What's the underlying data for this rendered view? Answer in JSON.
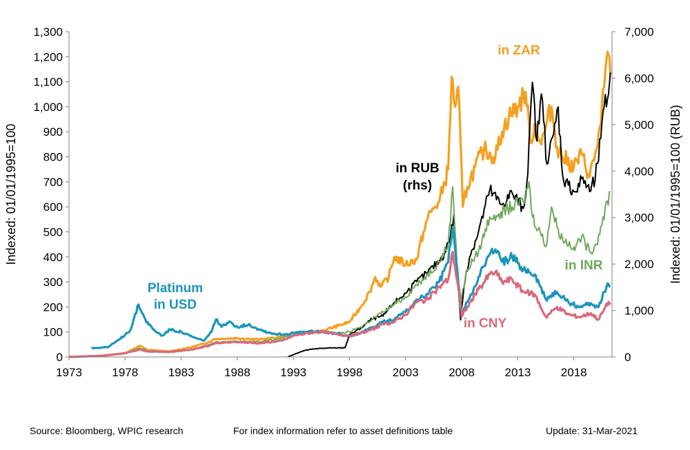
{
  "chart_data": {
    "type": "line",
    "x_ticks": [
      "1973",
      "1978",
      "1983",
      "1988",
      "1993",
      "1998",
      "2003",
      "2008",
      "2013",
      "2018"
    ],
    "y_left": {
      "label": "Indexed:  01/01/1995=100",
      "range": [
        0,
        1300
      ],
      "ticks": [
        "0",
        "100",
        "200",
        "300",
        "400",
        "500",
        "600",
        "700",
        "800",
        "900",
        "1,000",
        "1,100",
        "1,200",
        "1,300"
      ]
    },
    "y_right": {
      "label": "Indexed:  01/01/1995=100  (RUB)",
      "range": [
        0,
        7000
      ],
      "ticks": [
        "0",
        "1,000",
        "2,000",
        "3,000",
        "4,000",
        "5,000",
        "6,000",
        "7,000"
      ]
    },
    "series": [
      {
        "name": "in ZAR",
        "color": "#f5a020",
        "axis": "left",
        "points": [
          [
            1973,
            0
          ],
          [
            1976,
            5
          ],
          [
            1978,
            15
          ],
          [
            1979.3,
            45
          ],
          [
            1980,
            28
          ],
          [
            1982,
            22
          ],
          [
            1984,
            40
          ],
          [
            1985.5,
            60
          ],
          [
            1986,
            72
          ],
          [
            1988,
            75
          ],
          [
            1990,
            70
          ],
          [
            1992,
            80
          ],
          [
            1993,
            95
          ],
          [
            1995,
            100
          ],
          [
            1996,
            110
          ],
          [
            1997,
            125
          ],
          [
            1998,
            140
          ],
          [
            1999,
            200
          ],
          [
            1999.8,
            260
          ],
          [
            2000.3,
            320
          ],
          [
            2000.8,
            280
          ],
          [
            2001.5,
            320
          ],
          [
            2002,
            400
          ],
          [
            2003,
            370
          ],
          [
            2004,
            390
          ],
          [
            2004.6,
            500
          ],
          [
            2005,
            560
          ],
          [
            2005.6,
            600
          ],
          [
            2006,
            620
          ],
          [
            2006.8,
            750
          ],
          [
            2007.1,
            1120
          ],
          [
            2007.4,
            1000
          ],
          [
            2007.7,
            1080
          ],
          [
            2008.1,
            600
          ],
          [
            2008.5,
            680
          ],
          [
            2009.2,
            760
          ],
          [
            2010,
            830
          ],
          [
            2011,
            800
          ],
          [
            2011.6,
            900
          ],
          [
            2012.2,
            960
          ],
          [
            2013,
            1000
          ],
          [
            2013.7,
            1060
          ],
          [
            2014.1,
            870
          ],
          [
            2014.6,
            930
          ],
          [
            2015.1,
            850
          ],
          [
            2015.5,
            920
          ],
          [
            2016,
            1000
          ],
          [
            2016.5,
            840
          ],
          [
            2017,
            800
          ],
          [
            2018,
            760
          ],
          [
            2018.7,
            810
          ],
          [
            2019.4,
            720
          ],
          [
            2020,
            830
          ],
          [
            2020.4,
            930
          ],
          [
            2020.7,
            1080
          ],
          [
            2021,
            1220
          ],
          [
            2021.25,
            1130
          ]
        ]
      },
      {
        "name": "in RUB (rhs)",
        "color": "#000000",
        "axis": "right",
        "points": [
          [
            1992.5,
            0
          ],
          [
            1993,
            50
          ],
          [
            1994,
            140
          ],
          [
            1995,
            180
          ],
          [
            1996,
            190
          ],
          [
            1997.6,
            200
          ],
          [
            1998,
            480
          ],
          [
            1999,
            620
          ],
          [
            2000,
            820
          ],
          [
            2001,
            880
          ],
          [
            2002,
            1180
          ],
          [
            2003,
            1370
          ],
          [
            2004,
            1620
          ],
          [
            2005,
            1830
          ],
          [
            2006,
            2070
          ],
          [
            2006.5,
            2250
          ],
          [
            2007,
            2610
          ],
          [
            2007.3,
            3050
          ],
          [
            2007.9,
            800
          ],
          [
            2008.2,
            1500
          ],
          [
            2008.7,
            2150
          ],
          [
            2009.5,
            2700
          ],
          [
            2010.5,
            3600
          ],
          [
            2011.5,
            3280
          ],
          [
            2012.5,
            3530
          ],
          [
            2013.5,
            3200
          ],
          [
            2013.9,
            3950
          ],
          [
            2014.3,
            5910
          ],
          [
            2014.7,
            4650
          ],
          [
            2015.1,
            5660
          ],
          [
            2015.6,
            4150
          ],
          [
            2016.2,
            4800
          ],
          [
            2016.6,
            5380
          ],
          [
            2017,
            3900
          ],
          [
            2017.5,
            3700
          ],
          [
            2018.2,
            3560
          ],
          [
            2018.8,
            3870
          ],
          [
            2019.4,
            3560
          ],
          [
            2019.9,
            3820
          ],
          [
            2020.4,
            4700
          ],
          [
            2020.7,
            5390
          ],
          [
            2021,
            5560
          ],
          [
            2021.25,
            6120
          ]
        ]
      },
      {
        "name": "in INR",
        "color": "#6ea85b",
        "axis": "left",
        "points": [
          [
            1973,
            0
          ],
          [
            1976,
            5
          ],
          [
            1978,
            15
          ],
          [
            1979.3,
            35
          ],
          [
            1980,
            25
          ],
          [
            1982,
            20
          ],
          [
            1984,
            30
          ],
          [
            1985.5,
            50
          ],
          [
            1986,
            58
          ],
          [
            1988,
            62
          ],
          [
            1990,
            60
          ],
          [
            1992,
            75
          ],
          [
            1993,
            90
          ],
          [
            1995,
            100
          ],
          [
            1996,
            100
          ],
          [
            1997,
            95
          ],
          [
            1998,
            100
          ],
          [
            1999,
            120
          ],
          [
            2000,
            150
          ],
          [
            2001,
            180
          ],
          [
            2002,
            210
          ],
          [
            2003,
            240
          ],
          [
            2004,
            290
          ],
          [
            2005,
            330
          ],
          [
            2006,
            380
          ],
          [
            2006.8,
            450
          ],
          [
            2007.2,
            680
          ],
          [
            2007.8,
            200
          ],
          [
            2008.5,
            350
          ],
          [
            2009.5,
            420
          ],
          [
            2010.5,
            560
          ],
          [
            2011.5,
            580
          ],
          [
            2012.5,
            600
          ],
          [
            2013.5,
            620
          ],
          [
            2014,
            700
          ],
          [
            2014.3,
            560
          ],
          [
            2015,
            500
          ],
          [
            2015.5,
            440
          ],
          [
            2016,
            600
          ],
          [
            2016.5,
            520
          ],
          [
            2017,
            470
          ],
          [
            2018,
            440
          ],
          [
            2018.7,
            480
          ],
          [
            2019.4,
            420
          ],
          [
            2020,
            450
          ],
          [
            2020.6,
            560
          ],
          [
            2021.25,
            660
          ]
        ]
      },
      {
        "name": "Platinum in USD",
        "color": "#1a95bd",
        "axis": "left",
        "points": [
          [
            1975,
            35
          ],
          [
            1976.5,
            40
          ],
          [
            1977.5,
            70
          ],
          [
            1978.5,
            110
          ],
          [
            1979.2,
            210
          ],
          [
            1979.8,
            150
          ],
          [
            1980.5,
            110
          ],
          [
            1981.3,
            85
          ],
          [
            1982,
            110
          ],
          [
            1983,
            100
          ],
          [
            1984,
            80
          ],
          [
            1985,
            65
          ],
          [
            1985.7,
            100
          ],
          [
            1986.1,
            150
          ],
          [
            1986.6,
            120
          ],
          [
            1987.4,
            140
          ],
          [
            1988,
            120
          ],
          [
            1989,
            130
          ],
          [
            1990,
            110
          ],
          [
            1991,
            95
          ],
          [
            1992,
            90
          ],
          [
            1993,
            95
          ],
          [
            1994,
            100
          ],
          [
            1995,
            102
          ],
          [
            1996,
            98
          ],
          [
            1997,
            92
          ],
          [
            1998,
            85
          ],
          [
            1999,
            95
          ],
          [
            2000,
            120
          ],
          [
            2001,
            140
          ],
          [
            2002,
            150
          ],
          [
            2003,
            180
          ],
          [
            2004,
            230
          ],
          [
            2005,
            250
          ],
          [
            2006,
            300
          ],
          [
            2006.8,
            380
          ],
          [
            2007.2,
            520
          ],
          [
            2007.7,
            300
          ],
          [
            2008,
            170
          ],
          [
            2008.5,
            220
          ],
          [
            2009.5,
            320
          ],
          [
            2010.5,
            410
          ],
          [
            2011,
            430
          ],
          [
            2011.6,
            380
          ],
          [
            2012.5,
            400
          ],
          [
            2013.5,
            350
          ],
          [
            2014.5,
            330
          ],
          [
            2015.5,
            230
          ],
          [
            2016.5,
            260
          ],
          [
            2017.5,
            220
          ],
          [
            2018.5,
            200
          ],
          [
            2019.5,
            215
          ],
          [
            2020.2,
            200
          ],
          [
            2020.7,
            260
          ],
          [
            2021.1,
            290
          ],
          [
            2021.25,
            280
          ]
        ]
      },
      {
        "name": "in CNY",
        "color": "#d9697a",
        "axis": "left",
        "points": [
          [
            1973,
            0
          ],
          [
            1976,
            5
          ],
          [
            1978,
            15
          ],
          [
            1979.3,
            30
          ],
          [
            1980,
            22
          ],
          [
            1982,
            20
          ],
          [
            1984,
            30
          ],
          [
            1985.5,
            45
          ],
          [
            1986,
            55
          ],
          [
            1988,
            60
          ],
          [
            1990,
            55
          ],
          [
            1992,
            65
          ],
          [
            1993,
            85
          ],
          [
            1995,
            100
          ],
          [
            1996,
            98
          ],
          [
            1997,
            90
          ],
          [
            1998,
            85
          ],
          [
            1999,
            95
          ],
          [
            2000,
            110
          ],
          [
            2001,
            130
          ],
          [
            2002,
            140
          ],
          [
            2003,
            170
          ],
          [
            2004,
            220
          ],
          [
            2005,
            230
          ],
          [
            2006,
            280
          ],
          [
            2006.8,
            310
          ],
          [
            2007.2,
            420
          ],
          [
            2007.8,
            250
          ],
          [
            2008,
            160
          ],
          [
            2008.5,
            200
          ],
          [
            2009.5,
            270
          ],
          [
            2010.5,
            330
          ],
          [
            2011,
            340
          ],
          [
            2011.6,
            300
          ],
          [
            2012.5,
            310
          ],
          [
            2013.5,
            260
          ],
          [
            2014.5,
            250
          ],
          [
            2015.5,
            160
          ],
          [
            2016.5,
            200
          ],
          [
            2017.5,
            170
          ],
          [
            2018.5,
            160
          ],
          [
            2019.5,
            175
          ],
          [
            2020.2,
            150
          ],
          [
            2020.7,
            190
          ],
          [
            2021.1,
            220
          ],
          [
            2021.25,
            210
          ]
        ]
      }
    ],
    "labels": {
      "platinum_line1": "Platinum",
      "platinum_line2": "in USD",
      "rub_line1": "in RUB",
      "rub_line2": "(rhs)",
      "zar": "in ZAR",
      "inr": "in INR",
      "cny": "in CNY"
    },
    "legend": "inline labels",
    "grid": false
  },
  "footer": {
    "source": "Source: Bloomberg, WPIC research",
    "note": "For index information refer to asset definitions table",
    "update": "Update: 31-Mar-2021"
  }
}
